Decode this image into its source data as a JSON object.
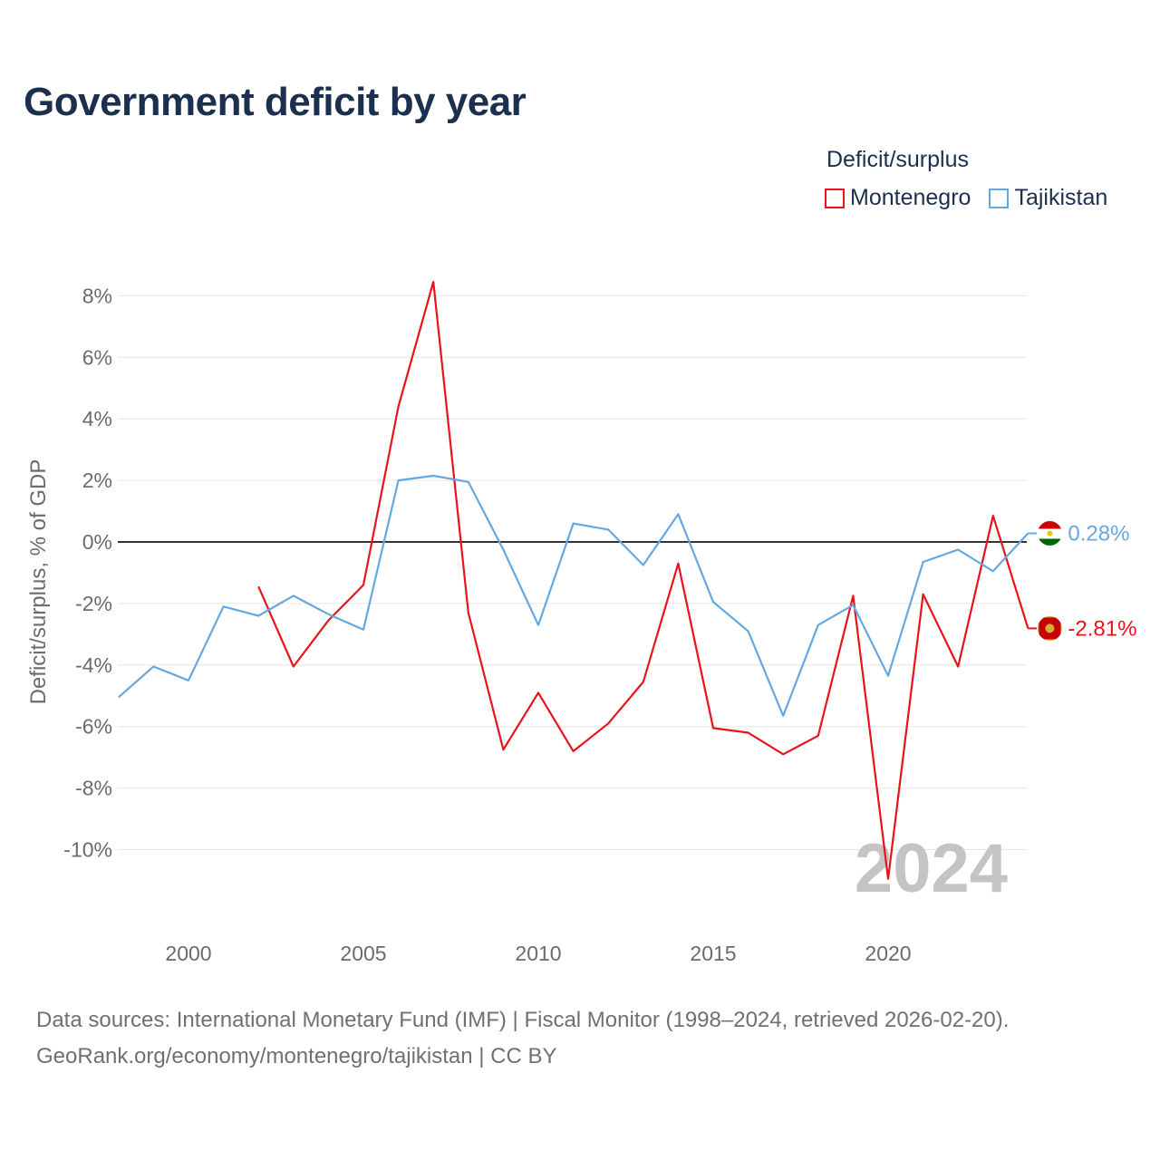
{
  "title": "Government deficit by year",
  "legend": {
    "title": "Deficit/surplus",
    "items": [
      {
        "label": "Montenegro",
        "color": "#e8131b"
      },
      {
        "label": "Tajikistan",
        "color": "#64a8e2"
      }
    ]
  },
  "sources": {
    "line1": "Data sources: International Monetary Fund (IMF) | Fiscal Monitor (1998–2024, retrieved 2026-02-20).",
    "line2": "GeoRank.org/economy/montenegro/tajikistan | CC BY"
  },
  "chart_data": {
    "type": "line",
    "title": "Government deficit by year",
    "xlabel": "",
    "ylabel": "Deficit/surplus, % of GDP",
    "xlim": [
      1998,
      2024
    ],
    "ylim": [
      -12,
      9
    ],
    "x_ticks": [
      2000,
      2005,
      2010,
      2015,
      2020
    ],
    "y_ticks": [
      8,
      6,
      4,
      2,
      0,
      -2,
      -4,
      -6,
      -8,
      -10
    ],
    "y_tick_labels": [
      "8%",
      "6%",
      "4%",
      "2%",
      "0%",
      "-2%",
      "-4%",
      "-6%",
      "-8%",
      "-10%"
    ],
    "year_watermark": "2024",
    "series": [
      {
        "name": "Montenegro",
        "color": "#e8131b",
        "end_label": "-2.81%",
        "x": [
          2002,
          2003,
          2004,
          2005,
          2006,
          2007,
          2008,
          2009,
          2010,
          2011,
          2012,
          2013,
          2014,
          2015,
          2016,
          2017,
          2018,
          2019,
          2020,
          2021,
          2022,
          2023,
          2024
        ],
        "values": [
          -1.45,
          -4.05,
          -2.55,
          -1.4,
          4.4,
          8.45,
          -2.3,
          -6.75,
          -4.9,
          -6.8,
          -5.9,
          -4.55,
          -0.7,
          -6.05,
          -6.2,
          -6.9,
          -6.3,
          -1.75,
          -10.95,
          -1.7,
          -4.05,
          0.85,
          -2.81
        ]
      },
      {
        "name": "Tajikistan",
        "color": "#64a8e2",
        "end_label": "0.28%",
        "x": [
          1998,
          1999,
          2000,
          2001,
          2002,
          2003,
          2004,
          2005,
          2006,
          2007,
          2008,
          2009,
          2010,
          2011,
          2012,
          2013,
          2014,
          2015,
          2016,
          2017,
          2018,
          2019,
          2020,
          2021,
          2022,
          2023,
          2024
        ],
        "values": [
          -5.05,
          -4.05,
          -4.5,
          -2.1,
          -2.4,
          -1.75,
          -2.35,
          -2.85,
          2.0,
          2.15,
          1.95,
          -0.25,
          -2.7,
          0.6,
          0.4,
          -0.75,
          0.9,
          -1.95,
          -2.9,
          -5.65,
          -2.7,
          -2.05,
          -4.35,
          -0.65,
          -0.25,
          -0.95,
          0.28
        ]
      }
    ]
  }
}
